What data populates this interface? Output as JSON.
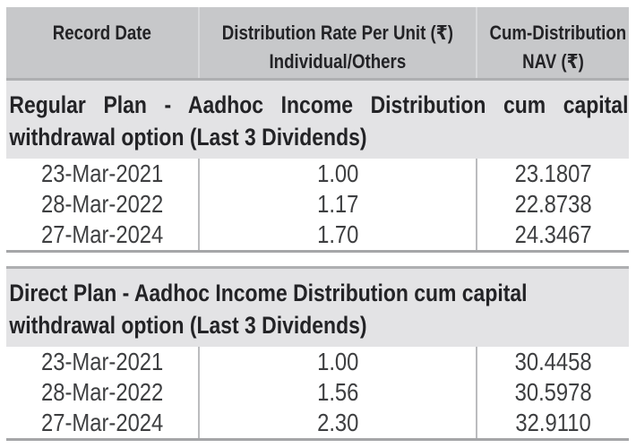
{
  "table": {
    "header": {
      "record_date": "Record Date",
      "rate_line1": "Distribution Rate Per Unit (₹)",
      "rate_line2": "Individual/Others",
      "nav_line1": "Cum-Distribution",
      "nav_line2": "NAV (₹)"
    },
    "sections": [
      {
        "title_line1": "Regular Plan - Aadhoc Income Distribution cum capital",
        "title_line2": "withdrawal option (Last 3 Dividends)",
        "rows": [
          {
            "record_date": "23-Mar-2021",
            "rate": "1.00",
            "nav": "23.1807"
          },
          {
            "record_date": "28-Mar-2022",
            "rate": "1.17",
            "nav": "22.8738"
          },
          {
            "record_date": "27-Mar-2024",
            "rate": "1.70",
            "nav": "24.3467"
          }
        ]
      },
      {
        "title_line1": "Direct Plan - Aadhoc Income Distribution cum capital",
        "title_line2": "withdrawal option (Last 3 Dividends)",
        "rows": [
          {
            "record_date": "23-Mar-2021",
            "rate": "1.00",
            "nav": "30.4458"
          },
          {
            "record_date": "28-Mar-2022",
            "rate": "1.56",
            "nav": "30.5978"
          },
          {
            "record_date": "27-Mar-2024",
            "rate": "2.30",
            "nav": "32.9110"
          }
        ]
      }
    ]
  },
  "colors": {
    "header_bg": "#c7c8ca",
    "section_bg": "#e3e3e5",
    "header_underline": "#aeafb1",
    "column_divider": "#bbbcbe",
    "section_bottom_border": "#a5a6a8",
    "text_bold": "#232326",
    "text_data": "#3e3f41"
  }
}
